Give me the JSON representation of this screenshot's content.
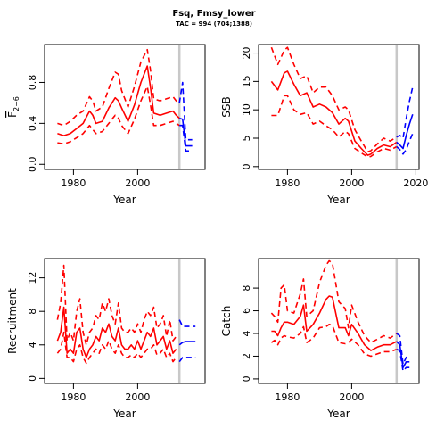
{
  "title": "Fsq, Fmsy_lower",
  "subtitle": "TAC = 994 (704;1388)",
  "colors": {
    "historic": "#ff0000",
    "projection": "#0000ff",
    "marker": "#c8c8c8"
  },
  "chart_data": [
    {
      "type": "line",
      "xlabel": "Year",
      "ylabel": "F2-6",
      "xlim": [
        1971,
        2021
      ],
      "ylim": [
        -0.05,
        1.17
      ],
      "xticks": [
        "1980",
        "2000"
      ],
      "yticks": [
        "0.0",
        "0.4",
        "0.8"
      ],
      "marker_year": 2013,
      "historic": {
        "x": [
          1975,
          1977,
          1979,
          1981,
          1983,
          1985,
          1986,
          1987,
          1989,
          1991,
          1993,
          1994,
          1995,
          1997,
          1999,
          2001,
          2003,
          2004,
          2005,
          2007,
          2009,
          2011,
          2012,
          2013
        ],
        "median": [
          0.3,
          0.28,
          0.3,
          0.35,
          0.4,
          0.52,
          0.48,
          0.4,
          0.42,
          0.55,
          0.65,
          0.62,
          0.55,
          0.42,
          0.58,
          0.8,
          0.96,
          0.75,
          0.5,
          0.48,
          0.5,
          0.52,
          0.48,
          0.45
        ],
        "lower": [
          0.21,
          0.2,
          0.22,
          0.26,
          0.3,
          0.38,
          0.34,
          0.3,
          0.32,
          0.4,
          0.48,
          0.45,
          0.38,
          0.3,
          0.44,
          0.62,
          0.76,
          0.58,
          0.38,
          0.38,
          0.4,
          0.42,
          0.4,
          0.38
        ],
        "upper": [
          0.4,
          0.38,
          0.42,
          0.48,
          0.52,
          0.66,
          0.62,
          0.52,
          0.56,
          0.74,
          0.9,
          0.88,
          0.72,
          0.56,
          0.76,
          1.0,
          1.12,
          0.92,
          0.64,
          0.62,
          0.64,
          0.66,
          0.62,
          0.6
        ]
      },
      "projection": {
        "x": [
          2013,
          2014,
          2015,
          2016,
          2017
        ],
        "median": [
          0.45,
          0.44,
          0.18,
          0.18,
          0.18
        ],
        "lower": [
          0.38,
          0.38,
          0.13,
          0.13,
          0.13
        ],
        "upper": [
          0.6,
          0.8,
          0.24,
          0.24,
          0.24
        ]
      }
    },
    {
      "type": "line",
      "xlabel": "Year",
      "ylabel": "SSB",
      "xlim": [
        1971,
        2021
      ],
      "ylim": [
        -0.5,
        21.5
      ],
      "xticks": [
        "1980",
        "2000",
        "2020"
      ],
      "yticks": [
        "0",
        "5",
        "10",
        "15",
        "20"
      ],
      "marker_year": 2014,
      "historic": {
        "x": [
          1975,
          1977,
          1979,
          1980,
          1982,
          1984,
          1986,
          1988,
          1990,
          1992,
          1994,
          1996,
          1998,
          1999,
          2001,
          2003,
          2005,
          2006,
          2008,
          2010,
          2012,
          2014
        ],
        "median": [
          15,
          13.5,
          16.5,
          16.8,
          14.5,
          12.5,
          13,
          10.5,
          11,
          10.5,
          9.5,
          7.5,
          8.5,
          8,
          4.5,
          3.2,
          2.0,
          2.2,
          3.2,
          3.8,
          3.5,
          4.3
        ],
        "lower": [
          9,
          9,
          12.5,
          12.5,
          10,
          9.2,
          9.5,
          7.5,
          8,
          7.2,
          6.5,
          5.2,
          6.2,
          5.8,
          3.2,
          2.4,
          1.7,
          1.8,
          2.6,
          3.2,
          2.9,
          3.5
        ],
        "upper": [
          21,
          18,
          20.5,
          21,
          18,
          15.5,
          16,
          13,
          14,
          14,
          12.5,
          10,
          10.5,
          10,
          6.5,
          4.5,
          2.6,
          2.8,
          4,
          5,
          4.5,
          5.2
        ]
      },
      "projection": {
        "x": [
          2014,
          2015,
          2016,
          2017,
          2018,
          2019
        ],
        "median": [
          4.3,
          3.8,
          3.2,
          5.5,
          7.5,
          9.2
        ],
        "lower": [
          3.5,
          3.0,
          2.2,
          3.0,
          4.5,
          5.8
        ],
        "upper": [
          5.2,
          5.5,
          5.0,
          8.5,
          11.5,
          14
        ]
      }
    },
    {
      "type": "line",
      "xlabel": "Year",
      "ylabel": "Recruitment",
      "xlim": [
        1971,
        2021
      ],
      "ylim": [
        -0.6,
        14.3
      ],
      "xticks": [
        "1980",
        "2000"
      ],
      "yticks": [
        "0",
        "4",
        "8",
        "12"
      ],
      "marker_year": 2013,
      "historic": {
        "x": [
          1975,
          1976,
          1977,
          1978,
          1979,
          1980,
          1981,
          1982,
          1983,
          1984,
          1985,
          1986,
          1987,
          1988,
          1989,
          1990,
          1991,
          1992,
          1993,
          1994,
          1995,
          1996,
          1997,
          1998,
          1999,
          2000,
          2001,
          2002,
          2003,
          2004,
          2005,
          2006,
          2007,
          2008,
          2009,
          2010,
          2011,
          2012
        ],
        "median": [
          4.5,
          5.5,
          8.5,
          3.0,
          3.5,
          3.0,
          5.5,
          6.0,
          3.5,
          2.5,
          3.5,
          4.0,
          5.0,
          4.5,
          6.0,
          5.5,
          6.5,
          5.0,
          4.5,
          6.0,
          4.0,
          3.5,
          3.5,
          4.0,
          3.5,
          4.5,
          3.5,
          4.5,
          5.5,
          5.0,
          6.0,
          4.0,
          4.5,
          5.0,
          3.5,
          4.5,
          3.0,
          3.5
        ],
        "lower": [
          3.0,
          3.5,
          5.5,
          2.5,
          2.5,
          2.0,
          3.5,
          4.0,
          2.5,
          1.8,
          2.5,
          3.0,
          3.5,
          3.0,
          4.0,
          3.5,
          4.5,
          3.5,
          3.0,
          4.0,
          3.0,
          2.5,
          2.5,
          2.8,
          2.5,
          3.0,
          2.5,
          3.0,
          3.5,
          3.5,
          4.0,
          2.8,
          3.0,
          3.5,
          2.5,
          3.0,
          2.0,
          2.5
        ],
        "upper": [
          7.0,
          9.0,
          13.5,
          4.5,
          5.5,
          4.5,
          8.0,
          9.5,
          5.5,
          4.0,
          5.5,
          6.0,
          7.5,
          7.0,
          9.0,
          8.0,
          9.5,
          7.5,
          6.5,
          9.0,
          6.0,
          5.5,
          5.5,
          6.0,
          5.5,
          6.5,
          5.5,
          7.0,
          8.0,
          7.5,
          8.5,
          6.0,
          6.5,
          7.5,
          5.0,
          7.0,
          4.5,
          5.0
        ]
      },
      "projection": {
        "x": [
          2013,
          2014,
          2015,
          2016,
          2017,
          2018
        ],
        "median": [
          4.0,
          4.3,
          4.4,
          4.4,
          4.4,
          4.4
        ],
        "lower": [
          2.0,
          2.5,
          2.5,
          2.5,
          2.5,
          2.5
        ],
        "upper": [
          7.0,
          6.2,
          6.2,
          6.2,
          6.2,
          6.2
        ]
      }
    },
    {
      "type": "line",
      "xlabel": "Year",
      "ylabel": "Catch",
      "xlim": [
        1971,
        2021
      ],
      "ylim": [
        -0.4,
        10.6
      ],
      "xticks": [
        "1980",
        "2000"
      ],
      "yticks": [
        "0",
        "2",
        "4",
        "6",
        "8"
      ],
      "marker_year": 2014,
      "historic": {
        "x": [
          1975,
          1976,
          1977,
          1978,
          1979,
          1980,
          1982,
          1984,
          1985,
          1986,
          1988,
          1990,
          1992,
          1993,
          1994,
          1996,
          1998,
          1999,
          2000,
          2002,
          2004,
          2006,
          2008,
          2010,
          2012,
          2014
        ],
        "median": [
          4.2,
          4.2,
          3.8,
          4.5,
          5.0,
          5.0,
          4.8,
          5.5,
          6.5,
          4.2,
          4.8,
          5.8,
          7.0,
          7.3,
          7.2,
          4.5,
          4.5,
          3.8,
          4.8,
          4.0,
          3.0,
          2.5,
          2.8,
          3.0,
          3.0,
          3.3
        ],
        "lower": [
          3.2,
          3.4,
          3.0,
          3.6,
          3.8,
          3.7,
          3.6,
          4.0,
          4.6,
          3.2,
          3.6,
          4.5,
          4.6,
          4.8,
          4.7,
          3.2,
          3.1,
          3.2,
          3.5,
          3.0,
          2.2,
          2.0,
          2.2,
          2.4,
          2.4,
          2.6
        ],
        "upper": [
          5.8,
          5.5,
          5.0,
          8.0,
          8.3,
          6.0,
          5.8,
          7.5,
          8.8,
          5.5,
          6.0,
          8.5,
          10.0,
          10.4,
          10.2,
          6.8,
          6.2,
          4.5,
          6.5,
          5.0,
          3.8,
          3.2,
          3.5,
          3.8,
          3.6,
          4.0
        ]
      },
      "projection": {
        "x": [
          2014,
          2015,
          2016,
          2017,
          2018
        ],
        "median": [
          3.3,
          3.0,
          1.0,
          1.5,
          1.5
        ],
        "lower": [
          2.6,
          2.5,
          0.7,
          1.0,
          1.0
        ],
        "upper": [
          4.0,
          3.8,
          1.3,
          1.9,
          1.9
        ]
      }
    }
  ]
}
